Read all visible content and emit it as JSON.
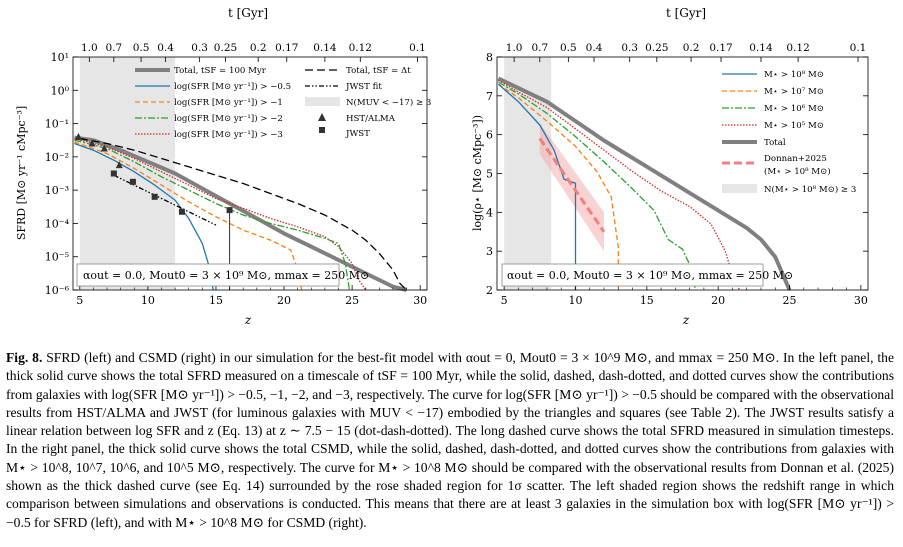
{
  "figure": {
    "caption_label": "Fig. 8.",
    "caption_text": "SFRD (left) and CSMD (right) in our simulation for the best-fit model with αout = 0, Mout0 = 3 × 10^9 M⊙, and mmax = 250 M⊙. In the left panel, the thick solid curve shows the total SFRD measured on a timescale of tSF = 100 Myr, while the solid, dashed, dash-dotted, and dotted curves show the contributions from galaxies with log(SFR [M⊙ yr⁻¹]) > −0.5, −1, −2, and −3, respectively. The curve for log(SFR [M⊙ yr⁻¹]) > −0.5 should be compared with the observational results from HST/ALMA and JWST (for luminous galaxies with MUV < −17) embodied by the triangles and squares (see Table 2). The JWST results satisfy a linear relation between log SFR and z (Eq. 13) at z ∼ 7.5 − 15 (dot-dash-dotted). The long dashed curve shows the total SFRD measured in simulation timesteps. In the right panel, the thick solid curve shows the total CSMD, while the solid, dashed, dash-dotted, and dotted curves show the contributions from galaxies with M⋆ > 10^8, 10^7, 10^6, and 10^5 M⊙, respectively. The curve for M⋆ > 10^8 M⊙ should be compared with the observational results from Donnan et al. (2025) shown as the thick dashed curve (see Eq. 14) surrounded by the rose shaded region for 1σ scatter. The left shaded region shows the redshift range in which comparison between simulations and observations is conducted. This means that there are at least 3 galaxies in the simulation box with log(SFR [M⊙ yr⁻¹]) > −0.5 for SFRD (left), and with M⋆ > 10^8 M⊙ for CSMD (right)."
  },
  "chart_data": [
    {
      "type": "line",
      "panel": "left",
      "xlabel": "z",
      "ylabel": "SFRD [M⊙ yr⁻¹ cMpc⁻³]",
      "top_axis_label": "t [Gyr]",
      "top_ticks": [
        "1.0",
        "0.7",
        "0.5",
        "0.4",
        "0.3",
        "0.25",
        "0.2",
        "0.17",
        "0.14",
        "0.12",
        "0.1"
      ],
      "top_tick_z": [
        5.7,
        7.5,
        9.5,
        11.3,
        13.8,
        15.7,
        18.1,
        20.2,
        23.0,
        25.6,
        29.8
      ],
      "xlim": [
        4.5,
        30.5
      ],
      "xticks": [
        "5",
        "10",
        "15",
        "20",
        "25",
        "30"
      ],
      "xtick_values": [
        5,
        10,
        15,
        20,
        25,
        30
      ],
      "ylim_log10": [
        -6,
        1
      ],
      "yticks": [
        "10⁻⁶",
        "10⁻⁵",
        "10⁻⁴",
        "10⁻³",
        "10⁻²",
        "10⁻¹",
        "10⁰",
        "10¹"
      ],
      "ytick_values": [
        -6,
        -5,
        -4,
        -3,
        -2,
        -1,
        0,
        1
      ],
      "shaded_region": {
        "z": [
          5,
          12
        ],
        "label": "N(MUV < −17) ≥ 3"
      },
      "legend_col1": [
        "Total, tSF = 100 Myr",
        "log(SFR [M⊙ yr⁻¹]) > −0.5",
        "log(SFR [M⊙ yr⁻¹]) > −1",
        "log(SFR [M⊙ yr⁻¹]) > −2",
        "log(SFR [M⊙ yr⁻¹]) > −3"
      ],
      "legend_col2": [
        "Total, tSF = Δt",
        "JWST fit",
        "N(MUV < −17) ≥ 3",
        "HST/ALMA",
        "JWST"
      ],
      "annotation": "αout = 0.0, Mout0 = 3 × 10⁹ M⊙, mmax = 250 M⊙",
      "series": [
        {
          "name": "Total, tSF = 100 Myr",
          "color": "#808080",
          "style": "thick",
          "points": [
            [
              4.6,
              -1.42
            ],
            [
              6,
              -1.5
            ],
            [
              8,
              -1.8
            ],
            [
              10,
              -2.15
            ],
            [
              12,
              -2.5
            ],
            [
              14,
              -2.95
            ],
            [
              16,
              -3.4
            ],
            [
              18,
              -3.85
            ],
            [
              20,
              -4.3
            ],
            [
              22,
              -4.7
            ],
            [
              24,
              -5.1
            ],
            [
              26,
              -5.5
            ],
            [
              27,
              -5.7
            ],
            [
              28,
              -5.9
            ],
            [
              29,
              -6.0
            ]
          ]
        },
        {
          "name": "Total, tSF = Δt",
          "color": "#000000",
          "style": "longdash",
          "points": [
            [
              5,
              -1.45
            ],
            [
              7,
              -1.6
            ],
            [
              9,
              -1.8
            ],
            [
              11,
              -2.05
            ],
            [
              13,
              -2.3
            ],
            [
              15,
              -2.55
            ],
            [
              17,
              -2.8
            ],
            [
              19,
              -3.1
            ],
            [
              21,
              -3.4
            ],
            [
              23,
              -3.75
            ],
            [
              25,
              -4.2
            ],
            [
              26,
              -4.5
            ],
            [
              27,
              -4.9
            ],
            [
              28,
              -5.4
            ],
            [
              28.5,
              -5.8
            ],
            [
              29,
              -6.0
            ]
          ]
        },
        {
          "name": "log(SFR) > −3",
          "color": "#d62728",
          "style": "dotted",
          "points": [
            [
              4.6,
              -1.45
            ],
            [
              7,
              -1.7
            ],
            [
              9,
              -2.05
            ],
            [
              11,
              -2.45
            ],
            [
              13,
              -2.85
            ],
            [
              15,
              -3.25
            ],
            [
              17,
              -3.55
            ],
            [
              19,
              -3.85
            ],
            [
              21,
              -4.1
            ],
            [
              23,
              -4.4
            ],
            [
              24,
              -4.7
            ],
            [
              25,
              -5.2
            ],
            [
              25.5,
              -5.7
            ],
            [
              26,
              -6.0
            ]
          ]
        },
        {
          "name": "log(SFR) > −2",
          "color": "#2ca02c",
          "style": "dashdot",
          "points": [
            [
              4.6,
              -1.5
            ],
            [
              7,
              -1.75
            ],
            [
              9,
              -2.15
            ],
            [
              11,
              -2.6
            ],
            [
              13,
              -3.0
            ],
            [
              15,
              -3.4
            ],
            [
              17,
              -3.75
            ],
            [
              19,
              -4.0
            ],
            [
              21,
              -4.2
            ],
            [
              23,
              -4.45
            ],
            [
              24,
              -4.6
            ],
            [
              24.5,
              -5.2
            ],
            [
              24.8,
              -6.0
            ]
          ]
        },
        {
          "name": "log(SFR) > −1",
          "color": "#ff7f0e",
          "style": "dashed",
          "points": [
            [
              4.6,
              -1.55
            ],
            [
              7,
              -1.9
            ],
            [
              9,
              -2.35
            ],
            [
              11,
              -2.85
            ],
            [
              13,
              -3.35
            ],
            [
              15,
              -3.8
            ],
            [
              17,
              -4.2
            ],
            [
              19,
              -4.5
            ],
            [
              20.5,
              -4.8
            ],
            [
              21,
              -5.4
            ],
            [
              21.3,
              -6.0
            ]
          ]
        },
        {
          "name": "log(SFR) > −0.5",
          "color": "#1f77b4",
          "style": "solid",
          "points": [
            [
              4.6,
              -1.6
            ],
            [
              6,
              -1.8
            ],
            [
              7.5,
              -2.1
            ],
            [
              9,
              -2.45
            ],
            [
              10.5,
              -2.85
            ],
            [
              12,
              -3.3
            ],
            [
              13,
              -3.85
            ],
            [
              14,
              -4.6
            ],
            [
              14.5,
              -5.3
            ],
            [
              14.8,
              -6.0
            ]
          ]
        },
        {
          "name": "JWST fit",
          "color": "#000000",
          "style": "dashdotdot",
          "points": [
            [
              7.5,
              -2.55
            ],
            [
              15,
              -4.05
            ]
          ]
        }
      ],
      "hst_alma_points": [
        [
          4.9,
          -1.4
        ],
        [
          5.9,
          -1.6
        ],
        [
          6.8,
          -1.75
        ],
        [
          7.9,
          -2.25
        ]
      ],
      "jwst_points": [
        [
          7.5,
          -2.5
        ],
        [
          8.9,
          -2.75
        ],
        [
          10.5,
          -3.2
        ],
        [
          12.5,
          -3.65
        ],
        [
          16,
          -3.6
        ]
      ],
      "jwst_upper_error_at_16": [
        -3.6,
        -6.0
      ]
    },
    {
      "type": "line",
      "panel": "right",
      "xlabel": "z",
      "ylabel": "log(ρ⋆ [M⊙ cMpc⁻³])",
      "top_axis_label": "t [Gyr]",
      "top_ticks": [
        "1.0",
        "0.7",
        "0.5",
        "0.4",
        "0.3",
        "0.25",
        "0.2",
        "0.17",
        "0.14",
        "0.12",
        "0.1"
      ],
      "top_tick_z": [
        5.7,
        7.5,
        9.5,
        11.3,
        13.8,
        15.7,
        18.1,
        20.2,
        23.0,
        25.6,
        29.8
      ],
      "xlim": [
        4.5,
        30.5
      ],
      "xticks": [
        "5",
        "10",
        "15",
        "20",
        "25",
        "30"
      ],
      "xtick_values": [
        5,
        10,
        15,
        20,
        25,
        30
      ],
      "ylim": [
        2,
        8
      ],
      "yticks": [
        "2",
        "3",
        "4",
        "5",
        "6",
        "7",
        "8"
      ],
      "ytick_values": [
        2,
        3,
        4,
        5,
        6,
        7,
        8
      ],
      "shaded_region": {
        "z": [
          5,
          8.3
        ],
        "label": "N(M⋆ > 10⁸ M⊙) ≥ 3"
      },
      "legend": [
        "M⋆ > 10⁸ M⊙",
        "M⋆ > 10⁷ M⊙",
        "M⋆ > 10⁶ M⊙",
        "M⋆ > 10⁵ M⊙",
        "Total",
        "Donnan+2025",
        "(M⋆ > 10⁸ M⊙)",
        "N(M⋆ > 10⁸ M⊙) ≥ 3"
      ],
      "annotation": "αout = 0.0, Mout0 = 3 × 10⁹ M⊙, mmax = 250 M⊙",
      "series": [
        {
          "name": "Total",
          "color": "#808080",
          "style": "thick",
          "points": [
            [
              4.6,
              7.45
            ],
            [
              6,
              7.2
            ],
            [
              8,
              6.85
            ],
            [
              10,
              6.35
            ],
            [
              12,
              5.85
            ],
            [
              14,
              5.4
            ],
            [
              16,
              4.95
            ],
            [
              18,
              4.5
            ],
            [
              20,
              4.05
            ],
            [
              22,
              3.6
            ],
            [
              23,
              3.3
            ],
            [
              24,
              2.85
            ],
            [
              25,
              2.0
            ]
          ]
        },
        {
          "name": "M⋆ > 10⁵ M⊙",
          "color": "#d62728",
          "style": "dotted",
          "points": [
            [
              4.6,
              7.4
            ],
            [
              6,
              7.1
            ],
            [
              8,
              6.7
            ],
            [
              10,
              6.15
            ],
            [
              12,
              5.6
            ],
            [
              14,
              5.05
            ],
            [
              16,
              4.55
            ],
            [
              18,
              4.15
            ],
            [
              19.5,
              3.7
            ],
            [
              20.5,
              3.0
            ],
            [
              21,
              2.4
            ],
            [
              21.5,
              2.0
            ]
          ]
        },
        {
          "name": "M⋆ > 10⁶ M⊙",
          "color": "#2ca02c",
          "style": "dashdot",
          "points": [
            [
              4.6,
              7.35
            ],
            [
              6,
              7.05
            ],
            [
              8,
              6.55
            ],
            [
              10,
              5.95
            ],
            [
              12,
              5.3
            ],
            [
              14,
              4.6
            ],
            [
              15.5,
              4.05
            ],
            [
              16.5,
              3.3
            ],
            [
              17.5,
              3.05
            ],
            [
              18.2,
              2.5
            ],
            [
              18.4,
              2.0
            ]
          ]
        },
        {
          "name": "M⋆ > 10⁷ M⊙",
          "color": "#ff7f0e",
          "style": "dashed",
          "points": [
            [
              4.6,
              7.3
            ],
            [
              6,
              6.95
            ],
            [
              8,
              6.35
            ],
            [
              10,
              5.7
            ],
            [
              11.5,
              5.05
            ],
            [
              12.5,
              4.4
            ],
            [
              13,
              3.1
            ],
            [
              13,
              2.0
            ]
          ]
        },
        {
          "name": "M⋆ > 10⁸ M⊙",
          "color": "#1f77b4",
          "style": "solid",
          "points": [
            [
              4.6,
              7.3
            ],
            [
              6,
              6.85
            ],
            [
              7.5,
              6.25
            ],
            [
              8.5,
              5.6
            ],
            [
              9.2,
              4.85
            ],
            [
              10,
              4.75
            ],
            [
              10,
              2.0
            ]
          ]
        },
        {
          "name": "Donnan+2025 (M⋆ > 10⁸ M⊙)",
          "color": "#f08080",
          "style": "thickdash",
          "points": [
            [
              7.5,
              5.9
            ],
            [
              12,
              3.5
            ]
          ],
          "band_upper": [
            [
              7.5,
              6.3
            ],
            [
              12,
              4.0
            ]
          ],
          "band_lower": [
            [
              7.5,
              5.5
            ],
            [
              12,
              3.0
            ]
          ]
        }
      ]
    }
  ]
}
